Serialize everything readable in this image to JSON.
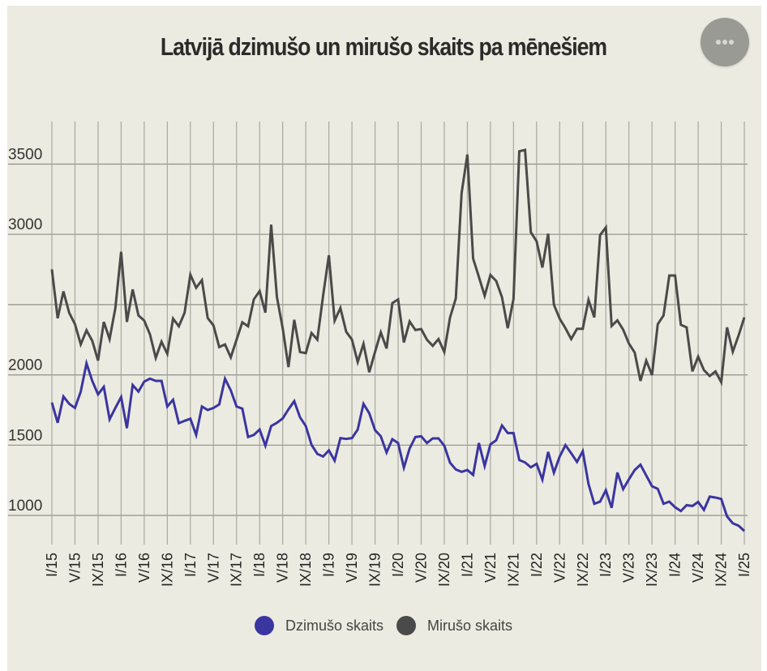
{
  "title": "Latvijā dzimušo un mirušo skaits pa mēnešiem",
  "menu_button": {
    "icon": "more-horizontal-icon"
  },
  "legend": [
    {
      "label": "Dzimušo skaits",
      "color": "#3b35a0"
    },
    {
      "label": "Mirušo skaits",
      "color": "#4a4a4a"
    }
  ],
  "chart_data": {
    "type": "line",
    "title": "Latvijā dzimušo un mirušo skaits pa mēnešiem",
    "xlabel": "",
    "ylabel": "",
    "x_start": "I/15",
    "x_end": "I/25",
    "x_tick_labels": [
      "I/15",
      "V/15",
      "IX/15",
      "I/16",
      "V/16",
      "IX/16",
      "I/17",
      "V/17",
      "IX/17",
      "I/18",
      "V/18",
      "IX/18",
      "I/19",
      "V/19",
      "IX/19",
      "I/20",
      "V/20",
      "IX/20",
      "I/21",
      "V/21",
      "IX/21",
      "I/22",
      "V/22",
      "IX/22",
      "I/23",
      "V/23",
      "IX/23",
      "I/24",
      "V/24",
      "IX/24",
      "I/25"
    ],
    "x_tick_every_months": 4,
    "y_ticks": [
      1000,
      1500,
      2000,
      2500,
      3000,
      3500
    ],
    "y_tick_labels": [
      "1000",
      "1500",
      "2000",
      "",
      "3000",
      "3500"
    ],
    "ylim": [
      885,
      3790
    ],
    "grid": true,
    "legend_position": "bottom",
    "series": [
      {
        "name": "Dzimušo skaits",
        "color": "#3b35a0",
        "values": [
          1803,
          1659,
          1846,
          1794,
          1765,
          1881,
          2082,
          1957,
          1861,
          1915,
          1684,
          1765,
          1842,
          1621,
          1928,
          1881,
          1952,
          1973,
          1957,
          1957,
          1775,
          1823,
          1656,
          1673,
          1688,
          1573,
          1775,
          1750,
          1765,
          1790,
          1973,
          1890,
          1775,
          1760,
          1558,
          1573,
          1611,
          1496,
          1636,
          1659,
          1690,
          1755,
          1813,
          1698,
          1636,
          1502,
          1438,
          1419,
          1463,
          1390,
          1550,
          1544,
          1550,
          1611,
          1794,
          1727,
          1607,
          1563,
          1448,
          1542,
          1515,
          1340,
          1477,
          1558,
          1563,
          1515,
          1548,
          1548,
          1496,
          1375,
          1327,
          1310,
          1323,
          1288,
          1515,
          1352,
          1506,
          1535,
          1640,
          1586,
          1586,
          1394,
          1377,
          1342,
          1367,
          1255,
          1452,
          1304,
          1419,
          1500,
          1442,
          1381,
          1457,
          1223,
          1083,
          1098,
          1179,
          1054,
          1305,
          1187,
          1257,
          1323,
          1361,
          1284,
          1208,
          1189,
          1083,
          1098,
          1058,
          1031,
          1073,
          1067,
          1096,
          1039,
          1134,
          1127,
          1117,
          993,
          944,
          927,
          889
        ]
      },
      {
        "name": "Mirušo skaits",
        "color": "#4a4a4a",
        "values": [
          2751,
          2403,
          2594,
          2442,
          2361,
          2217,
          2317,
          2242,
          2102,
          2377,
          2255,
          2476,
          2876,
          2377,
          2608,
          2423,
          2386,
          2288,
          2121,
          2236,
          2150,
          2400,
          2346,
          2443,
          2713,
          2620,
          2674,
          2405,
          2352,
          2198,
          2217,
          2125,
          2250,
          2374,
          2346,
          2538,
          2596,
          2443,
          3069,
          2553,
          2332,
          2055,
          2392,
          2163,
          2155,
          2298,
          2251,
          2563,
          2851,
          2386,
          2476,
          2307,
          2251,
          2092,
          2221,
          2019,
          2163,
          2303,
          2188,
          2511,
          2537,
          2231,
          2380,
          2319,
          2326,
          2250,
          2207,
          2255,
          2163,
          2409,
          2544,
          3293,
          3568,
          2828,
          2697,
          2563,
          2711,
          2668,
          2553,
          2332,
          2540,
          3591,
          3601,
          3015,
          2951,
          2764,
          3005,
          2499,
          2400,
          2332,
          2255,
          2328,
          2328,
          2534,
          2409,
          2995,
          3049,
          2348,
          2388,
          2322,
          2223,
          2159,
          1957,
          2102,
          1999,
          2361,
          2423,
          2707,
          2707,
          2357,
          2338,
          2025,
          2130,
          2034,
          1992,
          2025,
          1948,
          2338,
          2165,
          2280,
          2409
        ]
      }
    ]
  }
}
